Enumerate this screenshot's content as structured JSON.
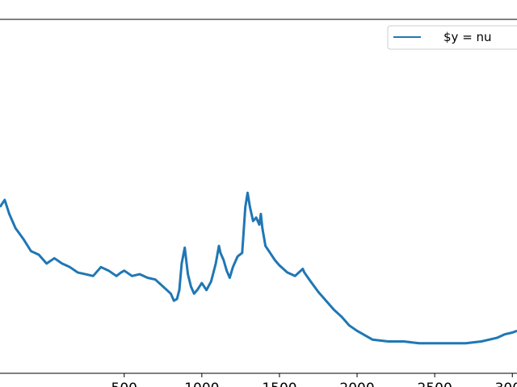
{
  "chart_data": {
    "type": "line",
    "legend": {
      "placement": "top-right",
      "entries": [
        "$y = nu"
      ]
    },
    "xlim": [
      -300,
      3030
    ],
    "ylim": [
      0,
      1
    ],
    "grid": false,
    "x_ticks": [
      500,
      1000,
      1500,
      2000,
      2500,
      3000
    ],
    "x_tick_labels": [
      "500",
      "1000",
      "1500",
      "2000",
      "2500",
      "3000"
    ],
    "series": [
      {
        "name": "$y = nu",
        "color": "#1f77b4",
        "x": [
          -300,
          -270,
          -240,
          -200,
          -150,
          -100,
          -50,
          0,
          50,
          100,
          150,
          200,
          250,
          300,
          350,
          400,
          450,
          480,
          500,
          550,
          600,
          650,
          700,
          750,
          800,
          820,
          840,
          855,
          870,
          890,
          910,
          930,
          950,
          970,
          1000,
          1030,
          1060,
          1090,
          1110,
          1120,
          1140,
          1160,
          1180,
          1200,
          1230,
          1260,
          1280,
          1295,
          1310,
          1330,
          1350,
          1370,
          1380,
          1390,
          1410,
          1440,
          1470,
          1500,
          1550,
          1600,
          1650,
          1660,
          1700,
          1750,
          1800,
          1850,
          1900,
          1950,
          2000,
          2100,
          2200,
          2300,
          2400,
          2500,
          2600,
          2700,
          2800,
          2900,
          2950,
          3000,
          3030
        ],
        "y": [
          0.47,
          0.49,
          0.45,
          0.41,
          0.38,
          0.345,
          0.335,
          0.31,
          0.325,
          0.31,
          0.3,
          0.285,
          0.28,
          0.275,
          0.3,
          0.29,
          0.275,
          0.285,
          0.29,
          0.275,
          0.28,
          0.27,
          0.265,
          0.245,
          0.225,
          0.205,
          0.21,
          0.235,
          0.31,
          0.355,
          0.28,
          0.245,
          0.225,
          0.235,
          0.255,
          0.235,
          0.26,
          0.31,
          0.36,
          0.34,
          0.32,
          0.29,
          0.27,
          0.3,
          0.33,
          0.34,
          0.47,
          0.51,
          0.47,
          0.43,
          0.44,
          0.42,
          0.45,
          0.41,
          0.36,
          0.34,
          0.32,
          0.305,
          0.285,
          0.275,
          0.295,
          0.285,
          0.26,
          0.23,
          0.205,
          0.18,
          0.16,
          0.135,
          0.12,
          0.095,
          0.09,
          0.09,
          0.085,
          0.085,
          0.085,
          0.085,
          0.09,
          0.1,
          0.11,
          0.115,
          0.12
        ]
      }
    ]
  }
}
